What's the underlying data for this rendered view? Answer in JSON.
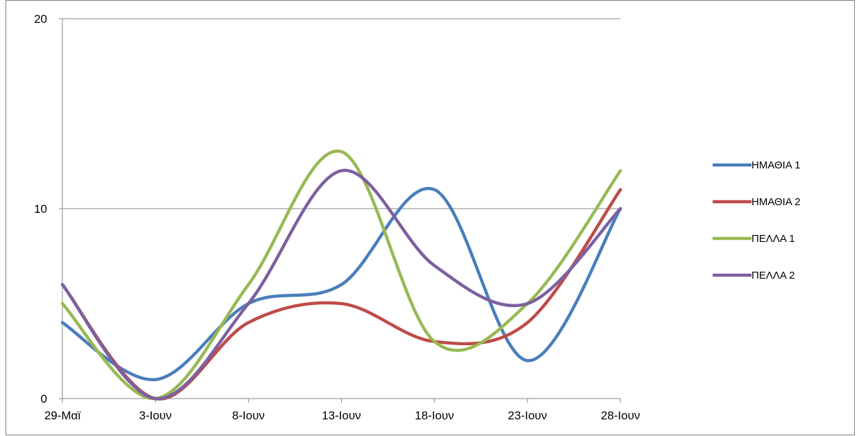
{
  "chart_data": {
    "type": "line",
    "smooth": true,
    "categories": [
      "29-Μαϊ",
      "3-Ιουν",
      "8-Ιουν",
      "13-Ιουν",
      "18-Ιουν",
      "23-Ιουν",
      "28-Ιουν"
    ],
    "ylim": [
      0,
      20
    ],
    "yticks": [
      "0",
      "10",
      "20"
    ],
    "grid": "horizontal major gridlines",
    "legend_position": "right",
    "series": [
      {
        "name": "ΗΜΑΘΙΑ 1",
        "color": "#4a7ebb",
        "values": [
          4,
          1,
          5,
          6,
          11,
          2,
          10
        ]
      },
      {
        "name": "ΗΜΑΘΙΑ 2",
        "color": "#be4b48",
        "values": [
          6,
          0,
          4,
          5,
          3,
          4,
          11
        ]
      },
      {
        "name": "ΠΕΛΛΑ 1",
        "color": "#98b954",
        "values": [
          5,
          0,
          6,
          13,
          3,
          5,
          12
        ]
      },
      {
        "name": "ΠΕΛΛΑ 2",
        "color": "#7d60a0",
        "values": [
          6,
          0,
          5,
          12,
          7,
          5,
          10
        ]
      }
    ]
  }
}
